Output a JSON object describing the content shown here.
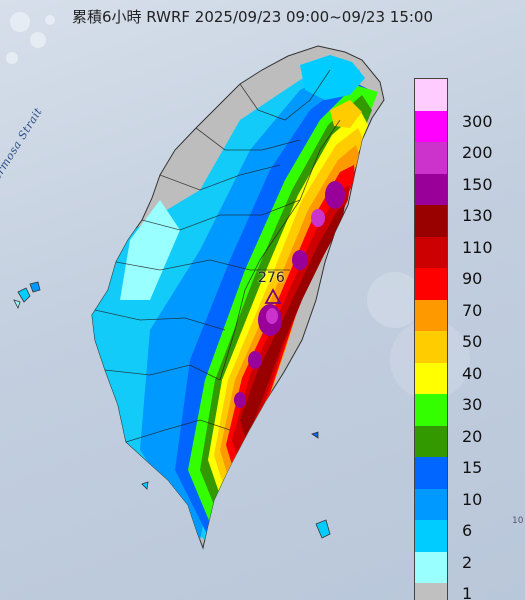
{
  "map": {
    "title": "累積6小時 RWRF 2025/09/23 09:00~09/23 15:00",
    "sea_label": "Formosa Strait",
    "peak": {
      "value": "276",
      "marker": "triangle-icon"
    },
    "edge_mark": "10"
  },
  "legend": {
    "levels": [
      {
        "label": "300",
        "color": "#ffccff"
      },
      {
        "label": "200",
        "color": "#ff00ff"
      },
      {
        "label": "150",
        "color": "#cc33cc"
      },
      {
        "label": "130",
        "color": "#990099"
      },
      {
        "label": "110",
        "color": "#990000"
      },
      {
        "label": "90",
        "color": "#cc0000"
      },
      {
        "label": "70",
        "color": "#ff0000"
      },
      {
        "label": "50",
        "color": "#ff9900"
      },
      {
        "label": "40",
        "color": "#ffcc00"
      },
      {
        "label": "30",
        "color": "#ffff00"
      },
      {
        "label": "20",
        "color": "#33ff00"
      },
      {
        "label": "15",
        "color": "#339900"
      },
      {
        "label": "10",
        "color": "#0066ff"
      },
      {
        "label": "6",
        "color": "#0099ff"
      },
      {
        "label": "2",
        "color": "#00ccff"
      },
      {
        "label": "1",
        "color": "#99ffff"
      },
      {
        "label": "",
        "color": "#c0c0c0"
      }
    ]
  }
}
